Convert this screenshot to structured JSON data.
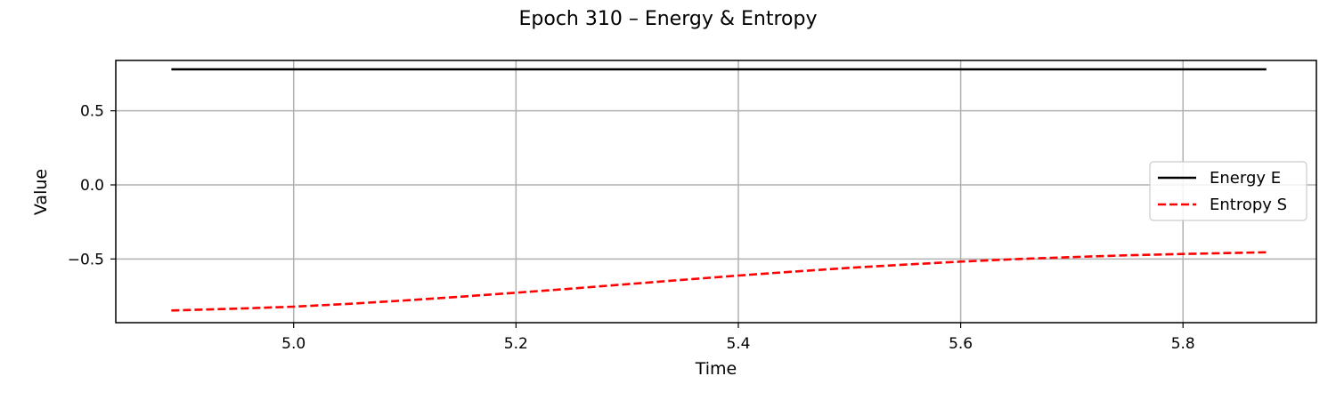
{
  "chart_data": {
    "type": "line",
    "title": "Epoch 310 – Energy & Entropy",
    "xlabel": "Time",
    "ylabel": "Value",
    "xlim": [
      4.84,
      5.92
    ],
    "ylim": [
      -0.93,
      0.84
    ],
    "x_ticks": [
      5.0,
      5.2,
      5.4,
      5.6,
      5.8
    ],
    "x_tick_labels": [
      "5.0",
      "5.2",
      "5.4",
      "5.6",
      "5.8"
    ],
    "y_ticks": [
      0.5,
      0.0,
      -0.5
    ],
    "y_tick_labels": [
      "0.5",
      "0.0",
      "−0.5"
    ],
    "grid": true,
    "legend_placement": "center-right",
    "series": [
      {
        "name": "Energy E",
        "color": "#000000",
        "style": "solid",
        "x": [
          4.89,
          5.0,
          5.1,
          5.2,
          5.3,
          5.4,
          5.5,
          5.6,
          5.7,
          5.8,
          5.875
        ],
        "y": [
          0.78,
          0.78,
          0.78,
          0.78,
          0.78,
          0.78,
          0.78,
          0.78,
          0.78,
          0.78,
          0.78
        ]
      },
      {
        "name": "Entropy S",
        "color": "#ff0000",
        "style": "dashed",
        "x": [
          4.89,
          4.95,
          5.0,
          5.05,
          5.1,
          5.15,
          5.2,
          5.25,
          5.3,
          5.35,
          5.4,
          5.45,
          5.5,
          5.55,
          5.6,
          5.65,
          5.7,
          5.75,
          5.8,
          5.875
        ],
        "y": [
          -0.848,
          -0.835,
          -0.822,
          -0.803,
          -0.78,
          -0.755,
          -0.728,
          -0.7,
          -0.67,
          -0.641,
          -0.612,
          -0.585,
          -0.56,
          -0.538,
          -0.518,
          -0.501,
          -0.487,
          -0.475,
          -0.466,
          -0.455
        ]
      }
    ]
  }
}
